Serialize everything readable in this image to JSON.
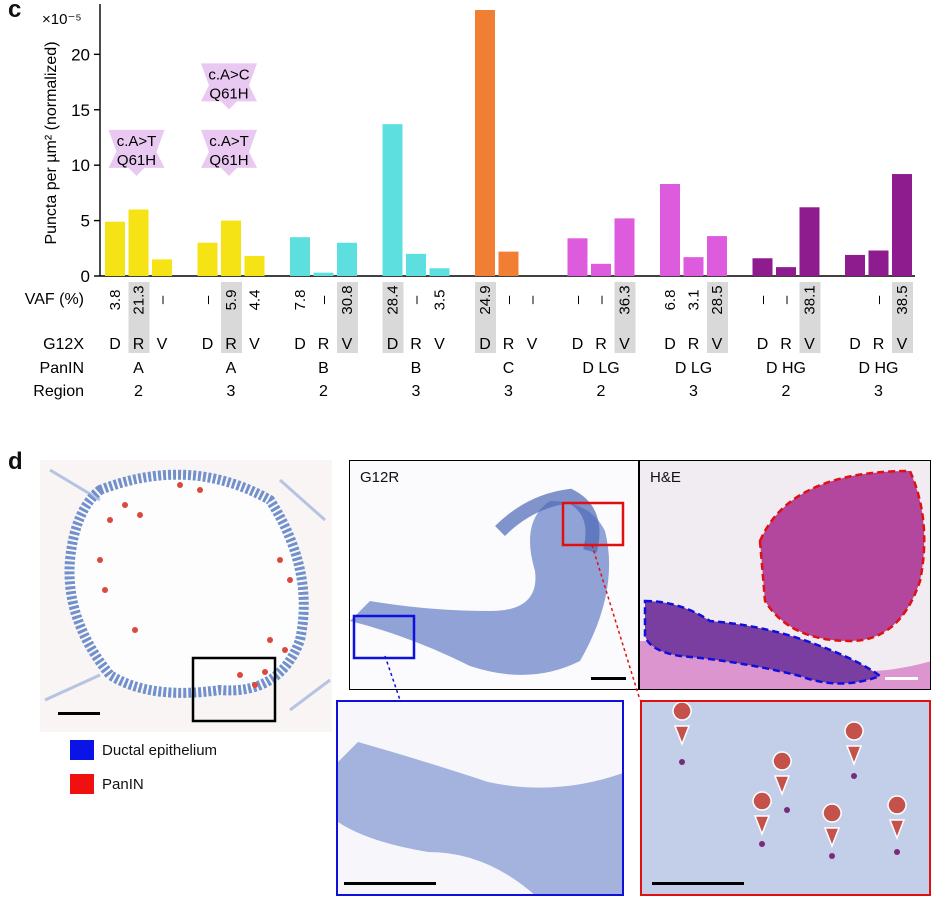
{
  "panels": {
    "c": "c",
    "d": "d"
  },
  "chart_data": {
    "type": "bar",
    "ylabel": "Puncta per µm² (normalized)",
    "y_multiplier": "×10⁻⁵",
    "ylim": [
      0,
      24
    ],
    "yticks": [
      0,
      5,
      10,
      15,
      20
    ],
    "row_labels": {
      "vaf": "VAF (%)",
      "g12x": "G12X",
      "panin": "PanIN",
      "region": "Region"
    },
    "groups": [
      {
        "color": "#f5e316",
        "panin": "A",
        "region": "2",
        "bars": [
          {
            "g12x": "D",
            "value": 4.9,
            "vaf": "3.8",
            "highlight": false
          },
          {
            "g12x": "R",
            "value": 6.0,
            "vaf": "21.3",
            "highlight": true
          },
          {
            "g12x": "V",
            "value": 1.5,
            "vaf": "–",
            "highlight": false
          }
        ]
      },
      {
        "color": "#f5e316",
        "panin": "A",
        "region": "3",
        "bars": [
          {
            "g12x": "D",
            "value": 3.0,
            "vaf": "–",
            "highlight": false
          },
          {
            "g12x": "R",
            "value": 5.0,
            "vaf": "5.9",
            "highlight": true
          },
          {
            "g12x": "V",
            "value": 1.8,
            "vaf": "4.4",
            "highlight": false
          }
        ]
      },
      {
        "color": "#5ddfdf",
        "panin": "B",
        "region": "2",
        "bars": [
          {
            "g12x": "D",
            "value": 3.5,
            "vaf": "7.8",
            "highlight": false
          },
          {
            "g12x": "R",
            "value": 0.3,
            "vaf": "–",
            "highlight": false
          },
          {
            "g12x": "V",
            "value": 3.0,
            "vaf": "30.8",
            "highlight": true
          }
        ]
      },
      {
        "color": "#5ddfdf",
        "panin": "B",
        "region": "3",
        "bars": [
          {
            "g12x": "D",
            "value": 13.7,
            "vaf": "28.4",
            "highlight": true
          },
          {
            "g12x": "R",
            "value": 2.0,
            "vaf": "–",
            "highlight": false
          },
          {
            "g12x": "V",
            "value": 0.7,
            "vaf": "3.5",
            "highlight": false
          }
        ]
      },
      {
        "color": "#f07f34",
        "panin": "C",
        "region": "3",
        "bars": [
          {
            "g12x": "D",
            "value": 24.0,
            "vaf": "24.9",
            "highlight": true
          },
          {
            "g12x": "R",
            "value": 2.2,
            "vaf": "–",
            "highlight": false
          },
          {
            "g12x": "V",
            "value": 0,
            "vaf": "–",
            "highlight": false
          }
        ]
      },
      {
        "color": "#dd5bdd",
        "panin": "D LG",
        "region": "2",
        "bars": [
          {
            "g12x": "D",
            "value": 3.4,
            "vaf": "–",
            "highlight": false
          },
          {
            "g12x": "R",
            "value": 1.1,
            "vaf": "–",
            "highlight": false
          },
          {
            "g12x": "V",
            "value": 5.2,
            "vaf": "36.3",
            "highlight": true
          }
        ]
      },
      {
        "color": "#dd5bdd",
        "panin": "D LG",
        "region": "3",
        "bars": [
          {
            "g12x": "D",
            "value": 8.3,
            "vaf": "6.8",
            "highlight": false
          },
          {
            "g12x": "R",
            "value": 1.7,
            "vaf": "3.1",
            "highlight": false
          },
          {
            "g12x": "V",
            "value": 3.6,
            "vaf": "28.5",
            "highlight": true
          }
        ]
      },
      {
        "color": "#8e1c8e",
        "panin": "D HG",
        "region": "2",
        "bars": [
          {
            "g12x": "D",
            "value": 1.6,
            "vaf": "–",
            "highlight": false
          },
          {
            "g12x": "R",
            "value": 0.8,
            "vaf": "–",
            "highlight": false
          },
          {
            "g12x": "V",
            "value": 6.2,
            "vaf": "38.1",
            "highlight": true
          }
        ]
      },
      {
        "color": "#8e1c8e",
        "panin": "D HG",
        "region": "3",
        "bars": [
          {
            "g12x": "D",
            "value": 1.9,
            "vaf": "",
            "highlight": false
          },
          {
            "g12x": "R",
            "value": 2.3,
            "vaf": "–",
            "highlight": false
          },
          {
            "g12x": "V",
            "value": 9.2,
            "vaf": "38.5",
            "highlight": true
          }
        ]
      }
    ],
    "annotations": [
      {
        "group": 0,
        "bar": 1,
        "lines": [
          "c.A>T",
          "Q61H"
        ],
        "y_value": 11.2
      },
      {
        "group": 1,
        "bar": 1,
        "lines": [
          "c.A>T",
          "Q61H"
        ],
        "y_value": 11.2
      },
      {
        "group": 1,
        "bar": 1,
        "lines": [
          "c.A>C",
          "Q61H"
        ],
        "y_value": 17.2
      }
    ]
  },
  "micrographs": {
    "g12r_label": "G12R",
    "he_label": "H&E"
  },
  "legend": [
    {
      "label": "Ductal epithelium",
      "color": "#0a14e6"
    },
    {
      "label": "PanIN",
      "color": "#f01010"
    }
  ]
}
